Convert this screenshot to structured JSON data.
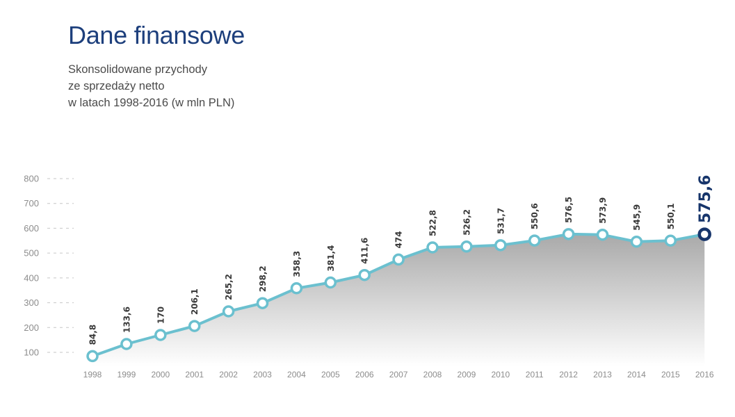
{
  "header": {
    "title": "Dane finansowe",
    "subtitle_lines": [
      "Skonsolidowane przychody",
      "ze sprzedaży netto",
      "w latach 1998-2016 (w mln PLN)"
    ]
  },
  "colors": {
    "title": "#1d3f7c",
    "line": "#6bc0cf",
    "highlight": "#17356b",
    "area_top": "#a9a9a9",
    "area_bottom": "#ffffff",
    "grid": "#c6c6c6"
  },
  "chart_data": {
    "type": "area",
    "title": "Dane finansowe",
    "subtitle": "Skonsolidowane przychody ze sprzedaży netto w latach 1998-2016 (w mln PLN)",
    "xlabel": "",
    "ylabel": "",
    "categories": [
      "1998",
      "1999",
      "2000",
      "2001",
      "2002",
      "2003",
      "2004",
      "2005",
      "2006",
      "2007",
      "2008",
      "2009",
      "2010",
      "2011",
      "2012",
      "2013",
      "2014",
      "2015",
      "2016"
    ],
    "values": [
      84.8,
      133.6,
      170,
      206.1,
      265.2,
      298.2,
      358.3,
      381.4,
      411.6,
      474,
      522.8,
      526.2,
      531.7,
      550.6,
      576.5,
      573.9,
      545.9,
      550.1,
      575.6
    ],
    "data_labels": [
      "84,8",
      "133,6",
      "170",
      "206,1",
      "265,2",
      "298,2",
      "358,3",
      "381,4",
      "411,6",
      "474",
      "522,8",
      "526,2",
      "531,7",
      "550,6",
      "576,5",
      "573,9",
      "545,9",
      "550,1",
      "575,6"
    ],
    "yticks": [
      100,
      200,
      300,
      400,
      500,
      600,
      700,
      800
    ],
    "ytick_labels": [
      "100",
      "200",
      "300",
      "400",
      "500",
      "600",
      "700",
      "800"
    ],
    "ylim": [
      100,
      800
    ],
    "grid": false,
    "legend": "none",
    "highlight_last": true
  }
}
